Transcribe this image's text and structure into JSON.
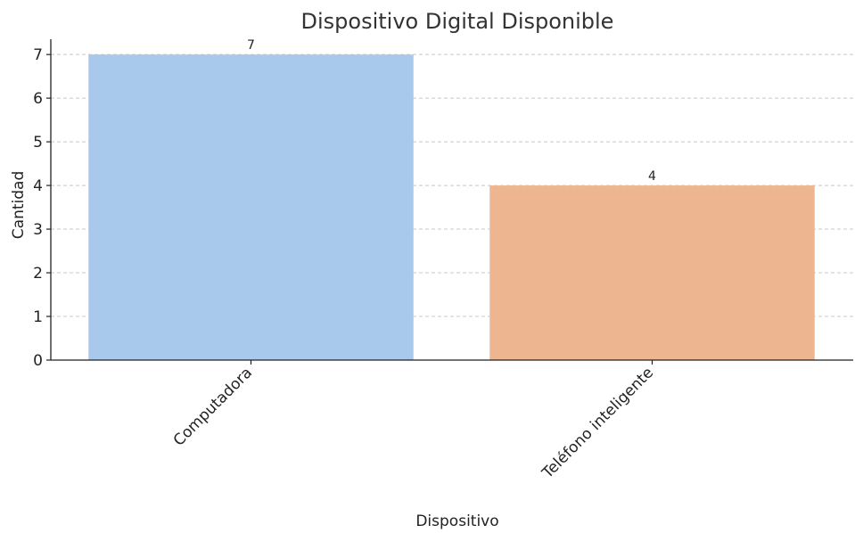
{
  "chart_data": {
    "type": "bar",
    "title": "Dispositivo Digital Disponible",
    "xlabel": "Dispositivo",
    "ylabel": "Cantidad",
    "categories": [
      "Computadora",
      "Teléfono inteligente"
    ],
    "values": [
      7,
      4
    ],
    "data_labels": [
      "7",
      "4"
    ],
    "ylim": [
      0,
      7.35
    ],
    "yticks": [
      0,
      1,
      2,
      3,
      4,
      5,
      6,
      7
    ],
    "ytick_labels": [
      "0",
      "1",
      "2",
      "3",
      "4",
      "5",
      "6",
      "7"
    ],
    "colors": [
      "#a8c8ec",
      "#eeb690"
    ],
    "grid": true,
    "grid_axis": "y",
    "xtick_rotation": "45",
    "legend": false
  }
}
